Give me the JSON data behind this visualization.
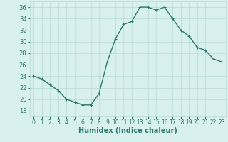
{
  "x": [
    0,
    1,
    2,
    3,
    4,
    5,
    6,
    7,
    8,
    9,
    10,
    11,
    12,
    13,
    14,
    15,
    16,
    17,
    18,
    19,
    20,
    21,
    22,
    23
  ],
  "y": [
    24,
    23.5,
    22.5,
    21.5,
    20,
    19.5,
    19,
    19,
    21,
    26.5,
    30.5,
    33,
    33.5,
    36,
    36,
    35.5,
    36,
    34,
    32,
    31,
    29,
    28.5,
    27,
    26.5
  ],
  "line_color": "#2d7a6e",
  "marker": "+",
  "bg_color": "#d8f0f0",
  "grid_color": "#b8d8d8",
  "xlabel": "Humidex (Indice chaleur)",
  "xlabel_fontsize": 7,
  "xlim": [
    -0.5,
    23.5
  ],
  "ylim": [
    17,
    37
  ],
  "yticks": [
    18,
    20,
    22,
    24,
    26,
    28,
    30,
    32,
    34,
    36
  ],
  "xticks": [
    0,
    1,
    2,
    3,
    4,
    5,
    6,
    7,
    8,
    9,
    10,
    11,
    12,
    13,
    14,
    15,
    16,
    17,
    18,
    19,
    20,
    21,
    22,
    23
  ],
  "tick_fontsize": 5.5,
  "ytick_fontsize": 6,
  "title_color": "#2d7a6e",
  "markersize": 3,
  "linewidth": 1.0
}
